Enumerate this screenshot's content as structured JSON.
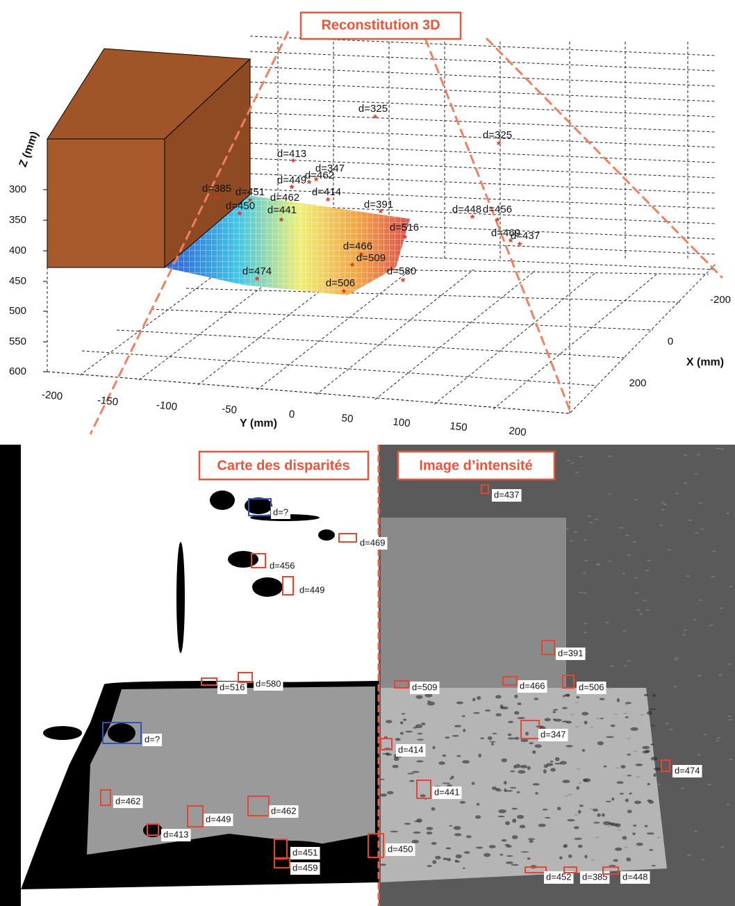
{
  "top_plot": {
    "title": "Reconstitution 3D",
    "z_label": "Z (mm)",
    "y_label": "Y (mm)",
    "x_label": "X (mm)",
    "z_ticks": [
      "300",
      "350",
      "400",
      "450",
      "500",
      "550",
      "600"
    ],
    "y_ticks": [
      "-200",
      "-150",
      "-100",
      "-50",
      "0",
      "50",
      "100",
      "150",
      "200"
    ],
    "x_ticks": [
      "-200",
      "0",
      "200"
    ],
    "points": [
      "d=325",
      "d=325",
      "d=413",
      "d=347",
      "d=462",
      "d=449",
      "d=414",
      "d=385",
      "d=451",
      "d=462",
      "d=450",
      "d=441",
      "d=391",
      "d=448",
      "d=456",
      "d=516",
      "d=469",
      "d=437",
      "d=466",
      "d=509",
      "d=580",
      "d=474",
      "d=506"
    ]
  },
  "left_panel": {
    "title": "Carte des disparités",
    "boxes": [
      "d=?",
      "d=469",
      "d=456",
      "d=449",
      "d=516",
      "d=580",
      "d=?",
      "d=462",
      "d=449",
      "d=462",
      "d=413",
      "d=451",
      "d=459",
      "d=450"
    ]
  },
  "right_panel": {
    "title": "Image d’intensité",
    "boxes": [
      "d=437",
      "d=391",
      "d=509",
      "d=466",
      "d=506",
      "d=347",
      "d=414",
      "d=474",
      "d=441",
      "d=452",
      "d=385",
      "d=448"
    ]
  }
}
